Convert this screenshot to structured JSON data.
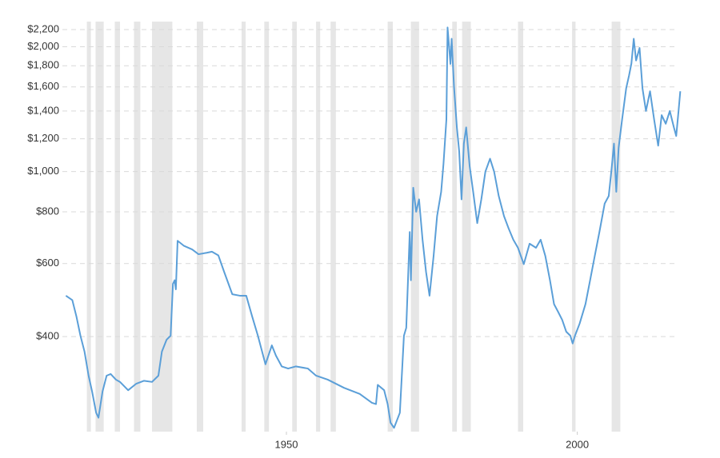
{
  "chart_data": {
    "type": "line",
    "log_scale_y": true,
    "grid": true,
    "color": "#5b9fd8",
    "recession_color": "#e6e6e6",
    "xlim": [
      1911.5,
      2018.2
    ],
    "xticks": [
      1950,
      2000
    ],
    "ylim": [
      236,
      2300
    ],
    "yticks": [
      {
        "value": 400,
        "label": "$400"
      },
      {
        "value": 600,
        "label": "$600"
      },
      {
        "value": 800,
        "label": "$800"
      },
      {
        "value": 1000,
        "label": "$1,000"
      },
      {
        "value": 1200,
        "label": "$1,200"
      },
      {
        "value": 1400,
        "label": "$1,400"
      },
      {
        "value": 1600,
        "label": "$1,600"
      },
      {
        "value": 1800,
        "label": "$1,800"
      },
      {
        "value": 2000,
        "label": "$2,000"
      },
      {
        "value": 2200,
        "label": "$2,200"
      }
    ],
    "recessions": [
      [
        1915.7,
        1916.4
      ],
      [
        1917.2,
        1918.6
      ],
      [
        1920.5,
        1921.4
      ],
      [
        1923.8,
        1924.9
      ],
      [
        1926.9,
        1930.4
      ],
      [
        1934.6,
        1935.7
      ],
      [
        1942.3,
        1943.0
      ],
      [
        1946.2,
        1947.0
      ],
      [
        1951.0,
        1951.8
      ],
      [
        1955.1,
        1955.8
      ],
      [
        1957.6,
        1958.5
      ],
      [
        1967.4,
        1968.3
      ],
      [
        1971.4,
        1972.8
      ],
      [
        1972.8,
        1972.8
      ],
      [
        1978.5,
        1979.3
      ],
      [
        1980.2,
        1981.7
      ],
      [
        1989.8,
        1990.7
      ],
      [
        1999.1,
        1999.7
      ],
      [
        2005.9,
        2007.4
      ]
    ],
    "x": [
      1912.1,
      1913.2,
      1913.9,
      1914.6,
      1915.3,
      1916.0,
      1916.6,
      1917.3,
      1917.7,
      1918.4,
      1919.1,
      1919.8,
      1920.7,
      1921.4,
      1922.8,
      1924.2,
      1925.5,
      1926.9,
      1928.0,
      1928.6,
      1929.4,
      1930.1,
      1930.5,
      1930.8,
      1931.0,
      1931.3,
      1932.4,
      1933.8,
      1934.9,
      1936.3,
      1937.2,
      1938.3,
      1939.3,
      1940.7,
      1942.0,
      1943.1,
      1944.1,
      1945.1,
      1946.4,
      1947.5,
      1948.2,
      1949.2,
      1950.3,
      1951.6,
      1953.7,
      1955.1,
      1957.1,
      1959.9,
      1962.6,
      1964.7,
      1965.4,
      1965.7,
      1966.8,
      1967.4,
      1967.9,
      1968.5,
      1969.5,
      1970.2,
      1970.6,
      1971.2,
      1971.4,
      1971.8,
      1972.3,
      1972.8,
      1973.4,
      1974.0,
      1974.6,
      1975.3,
      1975.9,
      1976.6,
      1977.0,
      1977.5,
      1977.7,
      1978.2,
      1978.4,
      1978.8,
      1979.3,
      1979.7,
      1980.1,
      1980.5,
      1980.9,
      1981.5,
      1982.1,
      1982.8,
      1983.5,
      1984.2,
      1985.0,
      1985.7,
      1986.5,
      1987.4,
      1988.2,
      1989.0,
      1989.8,
      1990.8,
      1991.8,
      1992.9,
      1993.7,
      1994.5,
      1995.3,
      1996.0,
      1996.7,
      1997.4,
      1998.1,
      1998.8,
      1999.2,
      1999.6,
      2000.4,
      2001.4,
      2002.2,
      2003.0,
      2003.8,
      2004.7,
      2005.4,
      2005.9,
      2006.3,
      2006.7,
      2007.1,
      2007.7,
      2008.4,
      2008.9,
      2009.3,
      2009.7,
      2010.1,
      2010.7,
      2011.2,
      2011.8,
      2012.5,
      2013.2,
      2013.9,
      2014.5,
      2015.2,
      2015.9,
      2016.6,
      2017.0,
      2017.4,
      2017.7
    ],
    "values": [
      502,
      490,
      448,
      402,
      368,
      322,
      295,
      262,
      255,
      295,
      322,
      325,
      315,
      311,
      297,
      308,
      313,
      311,
      322,
      368,
      393,
      402,
      536,
      547,
      520,
      681,
      662,
      649,
      632,
      637,
      641,
      628,
      573,
      506,
      502,
      502,
      448,
      402,
      343,
      381,
      360,
      339,
      335,
      339,
      335,
      322,
      315,
      301,
      291,
      277,
      275,
      306,
      297,
      275,
      248,
      241,
      262,
      402,
      420,
      715,
      547,
      914,
      800,
      857,
      685,
      573,
      502,
      626,
      781,
      894,
      1044,
      1336,
      2226,
      1818,
      2091,
      1610,
      1278,
      1118,
      857,
      1168,
      1278,
      1030,
      894,
      751,
      857,
      1000,
      1074,
      1000,
      873,
      781,
      729,
      685,
      655,
      598,
      670,
      655,
      685,
      626,
      547,
      479,
      459,
      439,
      411,
      402,
      385,
      402,
      430,
      479,
      547,
      626,
      715,
      837,
      873,
      1018,
      1168,
      894,
      1141,
      1336,
      1588,
      1707,
      1823,
      2091,
      1853,
      1987,
      1588,
      1400,
      1562,
      1336,
      1155,
      1368,
      1304,
      1400,
      1278,
      1219,
      1400,
      1562
    ]
  }
}
